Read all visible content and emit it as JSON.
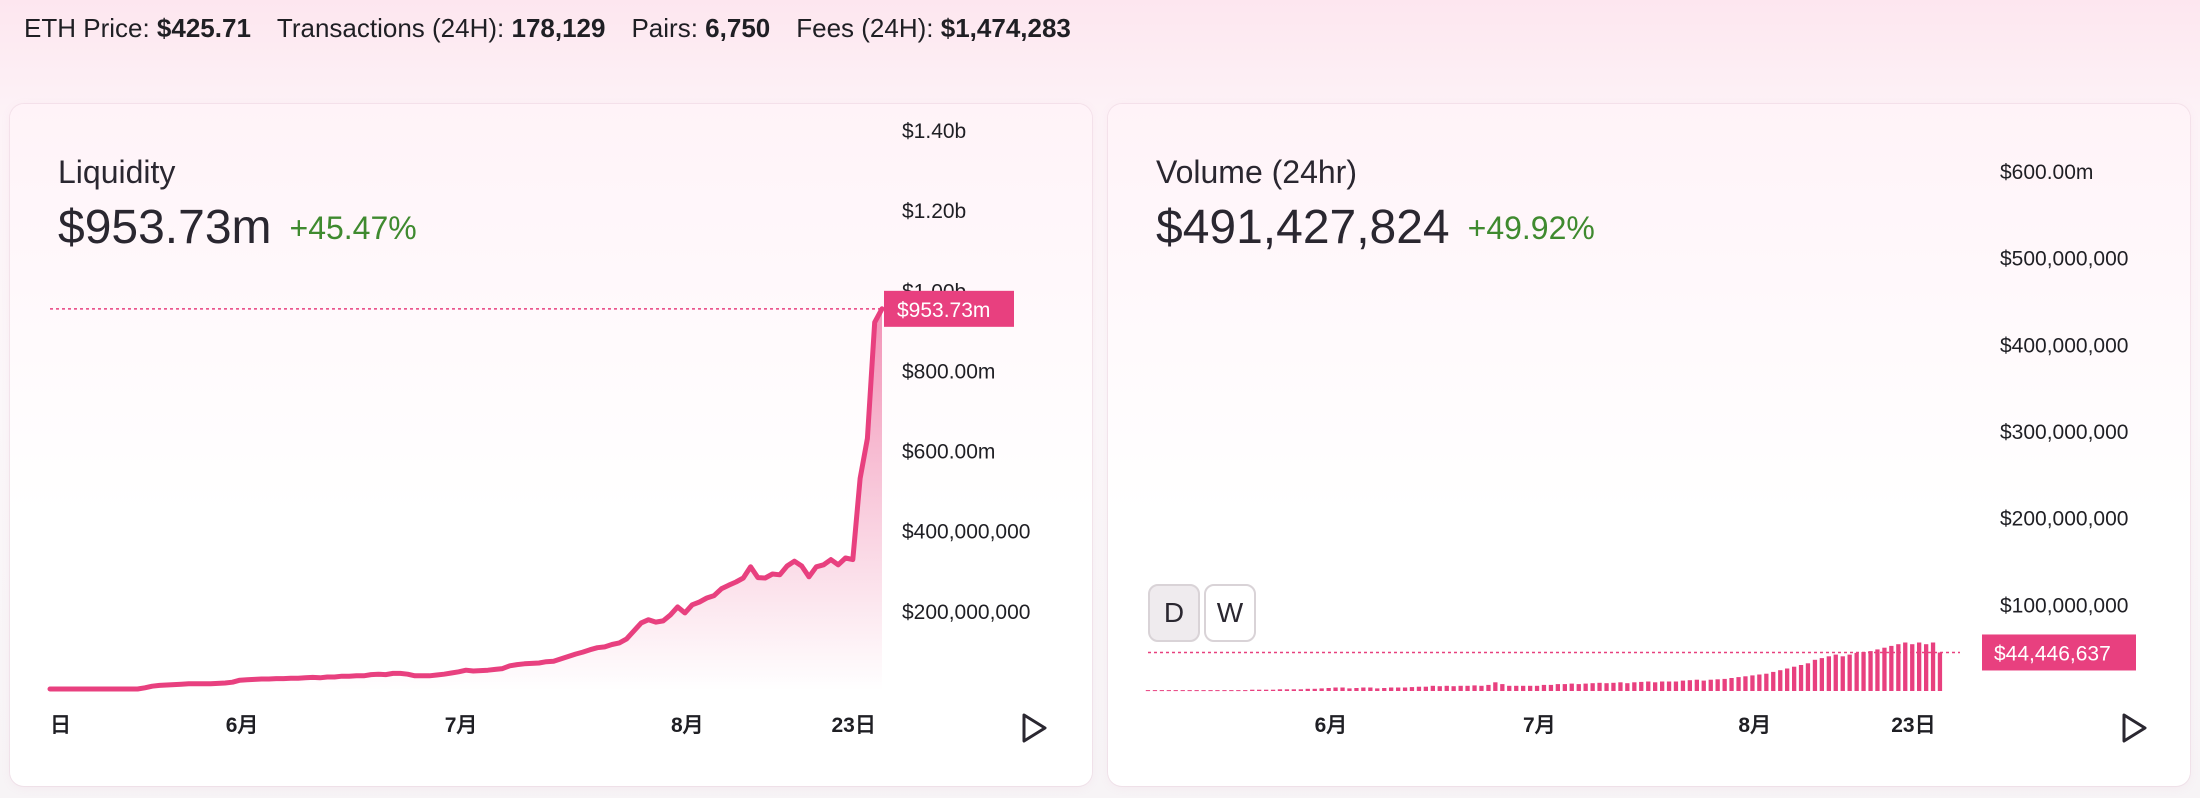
{
  "header": {
    "stats": [
      {
        "label": "ETH Price:",
        "value": "$425.71"
      },
      {
        "label": "Transactions (24H):",
        "value": "178,129"
      },
      {
        "label": "Pairs:",
        "value": "6,750"
      },
      {
        "label": "Fees (24H):",
        "value": "$1,474,283"
      }
    ]
  },
  "colors": {
    "accent": "#e8407f",
    "positive": "#3f8a2f",
    "tooltip_text": "#ffffff"
  },
  "liquidity": {
    "title": "Liquidity",
    "value": "$953.73m",
    "change": "+45.47%",
    "current_label": "$953.73m"
  },
  "volume": {
    "title": "Volume (24hr)",
    "value": "$491,427,824",
    "change": "+49.92%",
    "current_label": "$44,446,637",
    "toggle_day": "D",
    "toggle_week": "W"
  },
  "chart_data": [
    {
      "type": "area",
      "title": "Liquidity",
      "ylim": [
        0,
        1400000000
      ],
      "y_ticks": [
        200000000,
        400000000,
        600000000,
        800000000,
        1000000000,
        1200000000,
        1400000000
      ],
      "y_tick_labels": [
        "$200,000,000",
        "$400,000,000",
        "$600.00m",
        "$800.00m",
        "$1.00b",
        "$1.20b",
        "$1.40b"
      ],
      "x_tick_labels": [
        {
          "label": "日",
          "index": 0
        },
        {
          "label": "6月",
          "index": 26
        },
        {
          "label": "7月",
          "index": 56
        },
        {
          "label": "8月",
          "index": 87
        },
        {
          "label": "23日",
          "index": 109
        }
      ],
      "current_value": 953730000,
      "values": [
        5000000,
        5000000,
        5000000,
        5000000,
        5000000,
        5000000,
        5000000,
        5000000,
        5000000,
        5000000,
        5000000,
        5000000,
        5000000,
        8000000,
        12000000,
        14000000,
        15000000,
        16000000,
        17000000,
        18000000,
        18000000,
        18000000,
        18000000,
        19000000,
        20000000,
        22000000,
        27000000,
        28000000,
        29000000,
        30000000,
        30000000,
        31000000,
        31000000,
        32000000,
        32000000,
        33000000,
        34000000,
        33000000,
        35000000,
        35000000,
        37000000,
        37000000,
        38000000,
        38000000,
        41000000,
        42000000,
        41000000,
        44000000,
        44000000,
        42000000,
        38000000,
        38000000,
        38000000,
        40000000,
        42000000,
        45000000,
        48000000,
        52000000,
        50000000,
        51000000,
        52000000,
        54000000,
        56000000,
        63000000,
        66000000,
        68000000,
        69000000,
        70000000,
        73000000,
        74000000,
        80000000,
        86000000,
        92000000,
        97000000,
        103000000,
        108000000,
        110000000,
        116000000,
        120000000,
        130000000,
        150000000,
        170000000,
        178000000,
        172000000,
        175000000,
        190000000,
        210000000,
        195000000,
        215000000,
        222000000,
        232000000,
        238000000,
        255000000,
        264000000,
        272000000,
        282000000,
        310000000,
        283000000,
        282000000,
        292000000,
        290000000,
        312000000,
        324000000,
        312000000,
        285000000,
        310000000,
        315000000,
        328000000,
        315000000,
        332000000,
        328000000,
        530000000,
        630000000,
        920000000,
        953730000
      ]
    },
    {
      "type": "bar",
      "title": "Volume (24hr)",
      "ylim": [
        0,
        600000000
      ],
      "y_ticks": [
        100000000,
        200000000,
        300000000,
        400000000,
        500000000,
        600000000
      ],
      "y_tick_labels": [
        "$100,000,000",
        "$200,000,000",
        "$300,000,000",
        "$400,000,000",
        "$500,000,000",
        "$600.00m"
      ],
      "x_tick_labels": [
        {
          "label": "6月",
          "index": 26
        },
        {
          "label": "7月",
          "index": 56
        },
        {
          "label": "8月",
          "index": 87
        },
        {
          "label": "23日",
          "index": 109
        }
      ],
      "current_value": 44446637,
      "values": [
        1000000,
        1000000,
        1000000,
        1000000,
        1000000,
        1000000,
        1000000,
        1000000,
        1000000,
        1000000,
        1000000,
        1000000,
        1000000,
        1000000,
        1000000,
        1500000,
        1500000,
        1500000,
        1500000,
        2000000,
        2000000,
        2000000,
        2000000,
        2500000,
        2500000,
        3000000,
        3500000,
        4000000,
        4000000,
        3000000,
        3500000,
        4000000,
        4000000,
        3000000,
        3500000,
        4000000,
        4000000,
        4000000,
        4500000,
        5000000,
        5000000,
        6000000,
        5500000,
        6000000,
        5500000,
        6000000,
        6000000,
        6500000,
        6000000,
        7000000,
        10000000,
        8000000,
        6000000,
        6000000,
        6000000,
        6000000,
        6000000,
        7000000,
        7000000,
        8000000,
        8000000,
        8500000,
        8000000,
        8500000,
        9000000,
        9500000,
        9000000,
        9500000,
        10000000,
        9000000,
        10000000,
        10500000,
        11000000,
        10000000,
        11000000,
        11000000,
        11000000,
        12000000,
        12500000,
        13000000,
        12000000,
        13000000,
        13500000,
        14000000,
        15000000,
        16000000,
        17000000,
        18000000,
        19000000,
        20000000,
        22000000,
        24000000,
        26000000,
        28000000,
        30000000,
        32000000,
        36000000,
        38000000,
        40000000,
        42000000,
        40000000,
        42000000,
        44000000,
        45000000,
        46000000,
        48000000,
        50000000,
        52000000,
        54000000,
        56000000,
        54000000,
        56000000,
        54000000,
        56000000,
        44446637
      ]
    }
  ]
}
